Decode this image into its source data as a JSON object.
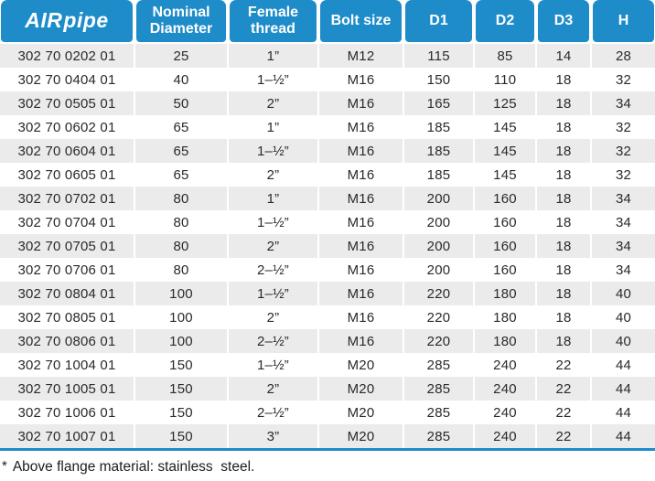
{
  "brand": {
    "logo_air": "AIR",
    "logo_pipe": "pipe"
  },
  "colors": {
    "header_blue": "#1f8cca",
    "row_gray": "#ebebeb",
    "text_dark": "#2a2a2a"
  },
  "table": {
    "columns": [
      "",
      "Nominal Diameter",
      "Female thread",
      "Bolt size",
      "D1",
      "D2",
      "D3",
      "H"
    ],
    "rows": [
      [
        "302 70 0202 01",
        "25",
        "1”",
        "M12",
        "115",
        "85",
        "14",
        "28"
      ],
      [
        "302 70 0404 01",
        "40",
        "1–½”",
        "M16",
        "150",
        "110",
        "18",
        "32"
      ],
      [
        "302 70 0505 01",
        "50",
        "2”",
        "M16",
        "165",
        "125",
        "18",
        "34"
      ],
      [
        "302 70 0602 01",
        "65",
        "1”",
        "M16",
        "185",
        "145",
        "18",
        "32"
      ],
      [
        "302 70 0604 01",
        "65",
        "1–½”",
        "M16",
        "185",
        "145",
        "18",
        "32"
      ],
      [
        "302 70 0605 01",
        "65",
        "2”",
        "M16",
        "185",
        "145",
        "18",
        "32"
      ],
      [
        "302 70 0702 01",
        "80",
        "1”",
        "M16",
        "200",
        "160",
        "18",
        "34"
      ],
      [
        "302 70 0704 01",
        "80",
        "1–½”",
        "M16",
        "200",
        "160",
        "18",
        "34"
      ],
      [
        "302 70 0705 01",
        "80",
        "2”",
        "M16",
        "200",
        "160",
        "18",
        "34"
      ],
      [
        "302 70 0706 01",
        "80",
        "2–½”",
        "M16",
        "200",
        "160",
        "18",
        "34"
      ],
      [
        "302 70 0804 01",
        "100",
        "1–½”",
        "M16",
        "220",
        "180",
        "18",
        "40"
      ],
      [
        "302 70 0805 01",
        "100",
        "2”",
        "M16",
        "220",
        "180",
        "18",
        "40"
      ],
      [
        "302 70 0806 01",
        "100",
        "2–½”",
        "M16",
        "220",
        "180",
        "18",
        "40"
      ],
      [
        "302 70 1004 01",
        "150",
        "1–½”",
        "M20",
        "285",
        "240",
        "22",
        "44"
      ],
      [
        "302 70 1005 01",
        "150",
        "2”",
        "M20",
        "285",
        "240",
        "22",
        "44"
      ],
      [
        "302 70 1006 01",
        "150",
        "2–½”",
        "M20",
        "285",
        "240",
        "22",
        "44"
      ],
      [
        "302 70 1007 01",
        "150",
        "3”",
        "M20",
        "285",
        "240",
        "22",
        "44"
      ]
    ]
  },
  "footnote": {
    "marker": "*",
    "text": "Above flange material: stainless  steel."
  }
}
